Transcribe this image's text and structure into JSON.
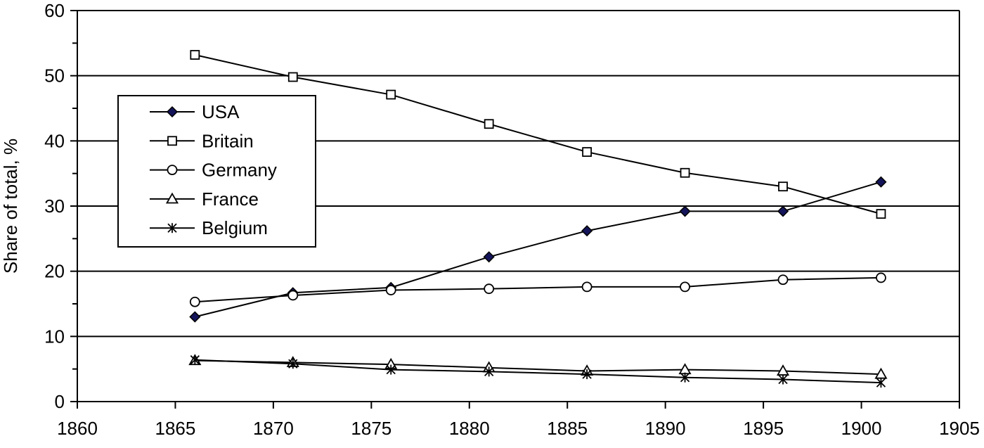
{
  "chart_data": {
    "type": "line",
    "title": "",
    "xlabel": "",
    "ylabel": "Share of total, %",
    "xlim": [
      1860,
      1905
    ],
    "ylim": [
      0,
      60
    ],
    "x_ticks": [
      "1860",
      "1865",
      "1870",
      "1875",
      "1880",
      "1885",
      "1890",
      "1895",
      "1900",
      "1905"
    ],
    "y_ticks": [
      "0",
      "10",
      "20",
      "30",
      "40",
      "50",
      "60"
    ],
    "grid": "horizontal",
    "legend_position": "upper-left",
    "x": [
      1866,
      1871,
      1876,
      1881,
      1886,
      1891,
      1896,
      1901
    ],
    "series": [
      {
        "name": "USA",
        "marker": "diamond-filled",
        "color": "#14145a",
        "values": [
          13.0,
          16.7,
          17.5,
          22.2,
          26.2,
          29.2,
          29.2,
          33.7
        ]
      },
      {
        "name": "Britain",
        "marker": "square-open",
        "color": "#000000",
        "values": [
          53.2,
          49.8,
          47.1,
          42.6,
          38.3,
          35.1,
          33.0,
          28.8
        ]
      },
      {
        "name": "Germany",
        "marker": "circle-open",
        "color": "#000000",
        "values": [
          15.3,
          16.3,
          17.1,
          17.3,
          17.6,
          17.6,
          18.7,
          19.0
        ]
      },
      {
        "name": "France",
        "marker": "triangle-open",
        "color": "#000000",
        "values": [
          6.3,
          6.0,
          5.7,
          5.2,
          4.7,
          4.9,
          4.7,
          4.2
        ]
      },
      {
        "name": "Belgium",
        "marker": "asterisk",
        "color": "#000000",
        "values": [
          6.4,
          5.8,
          4.9,
          4.6,
          4.2,
          3.7,
          3.4,
          2.9
        ]
      }
    ]
  }
}
